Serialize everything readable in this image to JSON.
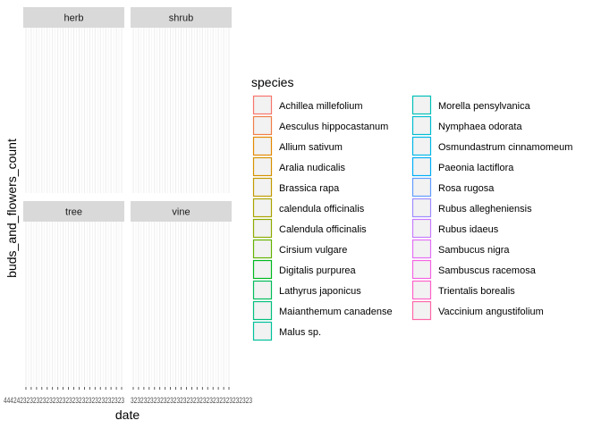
{
  "chart_data": {
    "type": "line",
    "xlabel": "date",
    "ylabel": "buds_and_flowers_count",
    "facet_strips": [
      "herb",
      "shrub",
      "tree",
      "vine"
    ],
    "x_tick_labels": {
      "left_panels": "4442423232323232323232323232323232323",
      "right_panels": "3232323232323232323232323232323232323"
    },
    "legend": {
      "title": "species",
      "placement": "right",
      "entries": [
        {
          "label": "Achillea millefolium",
          "color": "#F8766D"
        },
        {
          "label": "Aesculus hippocastanum",
          "color": "#EF7F47"
        },
        {
          "label": "Allium sativum",
          "color": "#E38900"
        },
        {
          "label": "Aralia nudicalis",
          "color": "#D49200"
        },
        {
          "label": "Brassica rapa",
          "color": "#C19A00"
        },
        {
          "label": "calendula officinalis",
          "color": "#ABA300"
        },
        {
          "label": "Calendula officinalis",
          "color": "#8EAB00"
        },
        {
          "label": "Cirsium vulgare",
          "color": "#64B200"
        },
        {
          "label": "Digitalis purpurea",
          "color": "#00B81F"
        },
        {
          "label": "Lathyrus japonicus",
          "color": "#00BC59"
        },
        {
          "label": "Maianthemum canadense",
          "color": "#00BF7D"
        },
        {
          "label": "Malus sp.",
          "color": "#00C19C"
        },
        {
          "label": "Morella pensylvanica",
          "color": "#00C0B7"
        },
        {
          "label": "Nymphaea odorata",
          "color": "#00BDD0"
        },
        {
          "label": "Osmundastrum cinnamomeum",
          "color": "#00B7E6"
        },
        {
          "label": "Paeonia lactiflora",
          "color": "#00AEF8"
        },
        {
          "label": "Rosa rugosa",
          "color": "#619CFF"
        },
        {
          "label": "Rubus allegheniensis",
          "color": "#9E8CFF"
        },
        {
          "label": "Rubus idaeus",
          "color": "#C77CFF"
        },
        {
          "label": "Sambucus nigra",
          "color": "#E46FF6"
        },
        {
          "label": "Sambuscus racemosa",
          "color": "#F564E3"
        },
        {
          "label": "Trientalis borealis",
          "color": "#FF61C9"
        },
        {
          "label": "Vaccinium angustifolium",
          "color": "#FF66A8"
        }
      ]
    },
    "grid": true,
    "series": []
  }
}
